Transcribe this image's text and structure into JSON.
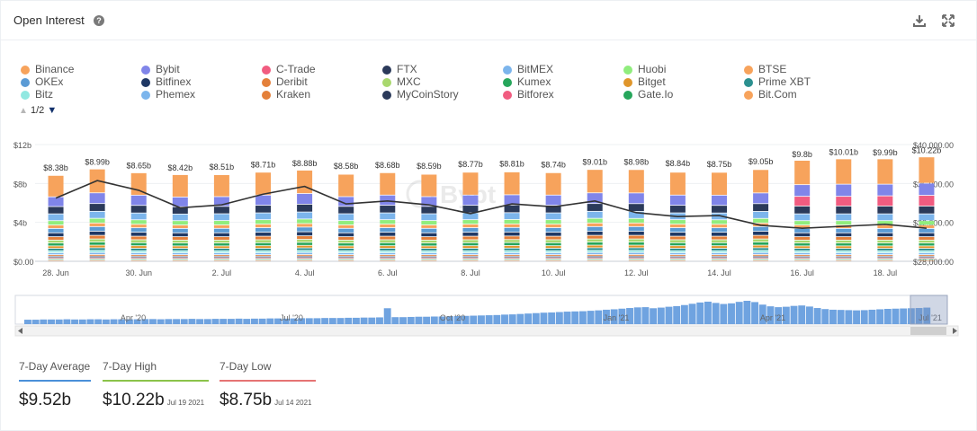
{
  "header": {
    "title": "Open Interest",
    "help_icon": "?"
  },
  "legend": {
    "items": [
      {
        "label": "Binance",
        "color": "#f7a35c"
      },
      {
        "label": "Bybit",
        "color": "#8085e9"
      },
      {
        "label": "C-Trade",
        "color": "#f15c80"
      },
      {
        "label": "FTX",
        "color": "#2b3a5a"
      },
      {
        "label": "BitMEX",
        "color": "#7cb5ec"
      },
      {
        "label": "Huobi",
        "color": "#90ed7d"
      },
      {
        "label": "BTSE",
        "color": "#f7a35c"
      },
      {
        "label": "OKEx",
        "color": "#5b9bd5"
      },
      {
        "label": "Bitfinex",
        "color": "#1f3864"
      },
      {
        "label": "Deribit",
        "color": "#e4803a"
      },
      {
        "label": "MXC",
        "color": "#a9d86e"
      },
      {
        "label": "Kumex",
        "color": "#26a65b"
      },
      {
        "label": "Bitget",
        "color": "#e0962b"
      },
      {
        "label": "Prime XBT",
        "color": "#2b908f"
      },
      {
        "label": "Bitz",
        "color": "#91e8e1"
      },
      {
        "label": "Phemex",
        "color": "#7cb5ec"
      },
      {
        "label": "Kraken",
        "color": "#e4803a"
      },
      {
        "label": "MyCoinStory",
        "color": "#2b3a5a"
      },
      {
        "label": "Bitforex",
        "color": "#f15c80"
      },
      {
        "label": "Gate.Io",
        "color": "#26a65b"
      },
      {
        "label": "Bit.Com",
        "color": "#f7a35c"
      }
    ],
    "page": "1/2",
    "page_up_glyph": "▲",
    "page_down_glyph": "▼"
  },
  "chart_data": {
    "type": "bar",
    "title": "Open Interest",
    "categories": [
      "28 Jun",
      "29 Jun",
      "30 Jun",
      "1 Jul",
      "2 Jul",
      "3 Jul",
      "4 Jul",
      "5 Jul",
      "6 Jul",
      "7 Jul",
      "8 Jul",
      "9 Jul",
      "10 Jul",
      "11 Jul",
      "12 Jul",
      "13 Jul",
      "14 Jul",
      "15 Jul",
      "16 Jul",
      "17 Jul",
      "18 Jul",
      "19 Jul"
    ],
    "x_tick_labels": [
      "28. Jun",
      "",
      "30. Jun",
      "",
      "2. Jul",
      "",
      "4. Jul",
      "",
      "6. Jul",
      "",
      "8. Jul",
      "",
      "10. Jul",
      "",
      "12. Jul",
      "",
      "14. Jul",
      "",
      "16. Jul",
      "",
      "18. Jul",
      ""
    ],
    "totals": [
      8.38,
      8.99,
      8.65,
      8.42,
      8.51,
      8.71,
      8.88,
      8.58,
      8.68,
      8.59,
      8.77,
      8.81,
      8.74,
      9.01,
      8.98,
      8.84,
      8.75,
      9.05,
      9.8,
      10.01,
      9.99,
      10.22
    ],
    "total_labels": [
      "$8.38b",
      "$8.99b",
      "$8.65b",
      "$8.42b",
      "$8.51b",
      "$8.71b",
      "$8.88b",
      "$8.58b",
      "$8.68b",
      "$8.59b",
      "$8.77b",
      "$8.81b",
      "$8.74b",
      "$9.01b",
      "$8.98b",
      "$8.84b",
      "$8.75b",
      "$9.05b",
      "$9.8b",
      "$10.01b",
      "$9.99b",
      "$10.22b"
    ],
    "series": [
      {
        "name": "Binance",
        "values": [
          2.2,
          2.45,
          2.3,
          2.3,
          2.25,
          2.35,
          2.4,
          2.3,
          2.3,
          2.3,
          2.35,
          2.35,
          2.3,
          2.4,
          2.4,
          2.35,
          2.35,
          2.4,
          2.5,
          2.6,
          2.6,
          2.7
        ]
      },
      {
        "name": "Bybit",
        "values": [
          1.0,
          1.1,
          1.05,
          1.0,
          1.0,
          1.05,
          1.1,
          1.0,
          1.05,
          1.0,
          1.05,
          1.05,
          1.05,
          1.1,
          1.1,
          1.05,
          1.05,
          1.1,
          1.2,
          1.25,
          1.2,
          1.25
        ]
      },
      {
        "name": "C-Trade",
        "values": [
          0,
          0,
          0,
          0,
          0,
          0,
          0,
          0,
          0,
          0,
          0,
          0,
          0,
          0,
          0,
          0,
          0,
          0,
          1.0,
          1.0,
          1.05,
          1.1
        ]
      },
      {
        "name": "FTX",
        "values": [
          0.75,
          0.8,
          0.78,
          0.75,
          0.76,
          0.78,
          0.8,
          0.76,
          0.78,
          0.76,
          0.78,
          0.79,
          0.78,
          0.8,
          0.8,
          0.78,
          0.78,
          0.8,
          0.8,
          0.8,
          0.8,
          0.8
        ]
      },
      {
        "name": "BitMEX",
        "values": [
          0.7,
          0.72,
          0.7,
          0.68,
          0.7,
          0.7,
          0.72,
          0.7,
          0.7,
          0.7,
          0.7,
          0.7,
          0.7,
          0.72,
          0.72,
          0.7,
          0.7,
          0.72,
          0.7,
          0.7,
          0.7,
          0.7
        ]
      },
      {
        "name": "Huobi",
        "values": [
          0.45,
          0.48,
          0.46,
          0.45,
          0.45,
          0.46,
          0.47,
          0.45,
          0.46,
          0.45,
          0.46,
          0.46,
          0.46,
          0.48,
          0.47,
          0.46,
          0.46,
          0.47,
          0.45,
          0.45,
          0.45,
          0.45
        ]
      },
      {
        "name": "BTSE",
        "values": [
          0.35,
          0.37,
          0.36,
          0.35,
          0.35,
          0.36,
          0.36,
          0.35,
          0.36,
          0.35,
          0.36,
          0.36,
          0.36,
          0.37,
          0.37,
          0.36,
          0.36,
          0.37,
          0.35,
          0.35,
          0.35,
          0.35
        ]
      },
      {
        "name": "OKEx",
        "values": [
          0.45,
          0.48,
          0.46,
          0.45,
          0.46,
          0.47,
          0.48,
          0.46,
          0.47,
          0.46,
          0.47,
          0.47,
          0.47,
          0.48,
          0.48,
          0.47,
          0.46,
          0.48,
          0.45,
          0.45,
          0.45,
          0.45
        ]
      },
      {
        "name": "Bitfinex",
        "values": [
          0.4,
          0.42,
          0.41,
          0.4,
          0.4,
          0.41,
          0.42,
          0.4,
          0.41,
          0.4,
          0.41,
          0.41,
          0.41,
          0.42,
          0.42,
          0.41,
          0.41,
          0.42,
          0.4,
          0.4,
          0.4,
          0.4
        ]
      },
      {
        "name": "Deribit",
        "values": [
          0.35,
          0.37,
          0.36,
          0.35,
          0.35,
          0.36,
          0.36,
          0.35,
          0.36,
          0.35,
          0.36,
          0.36,
          0.36,
          0.37,
          0.37,
          0.36,
          0.36,
          0.37,
          0.35,
          0.35,
          0.35,
          0.35
        ]
      },
      {
        "name": "MXC",
        "values": [
          0.3,
          0.32,
          0.31,
          0.3,
          0.3,
          0.31,
          0.31,
          0.3,
          0.31,
          0.3,
          0.31,
          0.31,
          0.31,
          0.32,
          0.32,
          0.31,
          0.31,
          0.32,
          0.3,
          0.3,
          0.3,
          0.3
        ]
      },
      {
        "name": "Kumex",
        "values": [
          0.3,
          0.32,
          0.31,
          0.3,
          0.3,
          0.31,
          0.31,
          0.3,
          0.31,
          0.3,
          0.31,
          0.31,
          0.31,
          0.32,
          0.32,
          0.31,
          0.31,
          0.32,
          0.3,
          0.3,
          0.3,
          0.3
        ]
      },
      {
        "name": "Bitget",
        "values": [
          0.25,
          0.27,
          0.26,
          0.25,
          0.25,
          0.26,
          0.26,
          0.25,
          0.26,
          0.25,
          0.26,
          0.26,
          0.26,
          0.27,
          0.27,
          0.26,
          0.26,
          0.27,
          0.25,
          0.25,
          0.25,
          0.25
        ]
      },
      {
        "name": "Prime XBT",
        "values": [
          0.25,
          0.27,
          0.26,
          0.25,
          0.25,
          0.26,
          0.26,
          0.25,
          0.26,
          0.25,
          0.26,
          0.26,
          0.26,
          0.27,
          0.27,
          0.26,
          0.26,
          0.27,
          0.25,
          0.25,
          0.25,
          0.25
        ]
      },
      {
        "name": "Bitz",
        "values": [
          0.2,
          0.21,
          0.2,
          0.2,
          0.2,
          0.2,
          0.21,
          0.2,
          0.2,
          0.2,
          0.2,
          0.21,
          0.2,
          0.21,
          0.21,
          0.2,
          0.2,
          0.21,
          0.2,
          0.2,
          0.2,
          0.2
        ]
      },
      {
        "name": "Phemex",
        "values": [
          0.2,
          0.21,
          0.2,
          0.2,
          0.2,
          0.2,
          0.21,
          0.2,
          0.2,
          0.2,
          0.2,
          0.21,
          0.2,
          0.21,
          0.21,
          0.2,
          0.2,
          0.21,
          0.2,
          0.2,
          0.2,
          0.2
        ]
      },
      {
        "name": "Kraken",
        "values": [
          0.15,
          0.16,
          0.15,
          0.15,
          0.15,
          0.15,
          0.16,
          0.15,
          0.15,
          0.15,
          0.15,
          0.15,
          0.15,
          0.16,
          0.16,
          0.15,
          0.15,
          0.16,
          0.15,
          0.15,
          0.15,
          0.15
        ]
      },
      {
        "name": "MyCoinStory",
        "values": [
          0.15,
          0.16,
          0.15,
          0.15,
          0.15,
          0.15,
          0.16,
          0.15,
          0.15,
          0.15,
          0.15,
          0.15,
          0.15,
          0.16,
          0.16,
          0.15,
          0.15,
          0.16,
          0.15,
          0.15,
          0.15,
          0.15
        ]
      },
      {
        "name": "Bitforex",
        "values": [
          0.12,
          0.12,
          0.12,
          0.12,
          0.12,
          0.12,
          0.12,
          0.12,
          0.12,
          0.12,
          0.12,
          0.12,
          0.12,
          0.12,
          0.12,
          0.12,
          0.12,
          0.12,
          0.12,
          0.12,
          0.12,
          0.12
        ]
      },
      {
        "name": "Gate.Io",
        "values": [
          0.12,
          0.12,
          0.12,
          0.12,
          0.12,
          0.12,
          0.12,
          0.12,
          0.12,
          0.12,
          0.12,
          0.12,
          0.12,
          0.12,
          0.12,
          0.12,
          0.12,
          0.12,
          0.12,
          0.12,
          0.12,
          0.12
        ]
      },
      {
        "name": "Bit.Com",
        "values": [
          0.1,
          0.1,
          0.1,
          0.1,
          0.1,
          0.1,
          0.1,
          0.1,
          0.1,
          0.1,
          0.1,
          0.1,
          0.1,
          0.1,
          0.1,
          0.1,
          0.1,
          0.1,
          0.1,
          0.1,
          0.1,
          0.1
        ]
      }
    ],
    "price_series": {
      "name": "BTC Price",
      "values": [
        34500,
        36300,
        35300,
        33500,
        33800,
        34900,
        35700,
        33900,
        34200,
        33800,
        32900,
        33900,
        33600,
        34200,
        33000,
        32600,
        32700,
        31700,
        31400,
        31600,
        31800,
        31400
      ],
      "color": "#333333"
    },
    "y_left": {
      "ylim": [
        0,
        12
      ],
      "ticks": [
        "$0.00",
        "$4b",
        "$8b",
        "$12b"
      ]
    },
    "y_right": {
      "ylim": [
        28000,
        40000
      ],
      "ticks": [
        "$28,000.00",
        "$32,000.00",
        "$36,000.00",
        "$40,000.00"
      ]
    },
    "watermark": "Bybt",
    "navigator": {
      "labels": [
        "Apr '20",
        "Jul '20",
        "Oct '20",
        "Jan '21",
        "Apr '21",
        "Jul '21"
      ],
      "values": [
        2.1,
        2.1,
        2.2,
        2.2,
        2.2,
        2.3,
        2.2,
        2.2,
        2.3,
        2.3,
        2.2,
        2.3,
        2.3,
        2.3,
        2.3,
        2.4,
        2.4,
        2.3,
        2.4,
        2.4,
        2.4,
        2.5,
        2.4,
        2.4,
        2.5,
        2.5,
        2.5,
        2.6,
        2.5,
        2.6,
        2.6,
        2.7,
        2.7,
        2.6,
        2.7,
        2.8,
        2.8,
        2.8,
        2.9,
        2.9,
        2.9,
        3.0,
        3.0,
        3.1,
        3.1,
        3.2,
        7.5,
        3.3,
        3.3,
        3.4,
        3.5,
        3.5,
        3.6,
        3.6,
        3.7,
        3.8,
        3.9,
        4.0,
        4.1,
        4.2,
        4.3,
        4.5,
        4.6,
        4.8,
        5.0,
        5.2,
        5.4,
        5.5,
        5.7,
        5.9,
        6.0,
        6.1,
        6.3,
        6.5,
        6.8,
        7.0,
        7.3,
        7.6,
        7.9,
        8.0,
        7.5,
        7.8,
        8.2,
        8.5,
        9.0,
        9.6,
        10.2,
        10.6,
        10.0,
        9.5,
        9.8,
        10.5,
        11.0,
        10.4,
        9.2,
        8.4,
        8.0,
        8.2,
        8.6,
        8.8,
        8.3,
        7.6,
        7.1,
        6.8,
        6.7,
        6.6,
        6.5,
        6.6,
        6.8,
        7.0,
        7.2,
        7.3,
        7.4,
        7.5,
        7.6,
        7.8
      ]
    }
  },
  "stats": [
    {
      "label": "7-Day Average",
      "value": "$9.52b",
      "date": "",
      "color": "#4a90d9"
    },
    {
      "label": "7-Day High",
      "value": "$10.22b",
      "date": "Jul 19 2021",
      "color": "#8bc34a"
    },
    {
      "label": "7-Day Low",
      "value": "$8.75b",
      "date": "Jul 14 2021",
      "color": "#e57373"
    }
  ]
}
